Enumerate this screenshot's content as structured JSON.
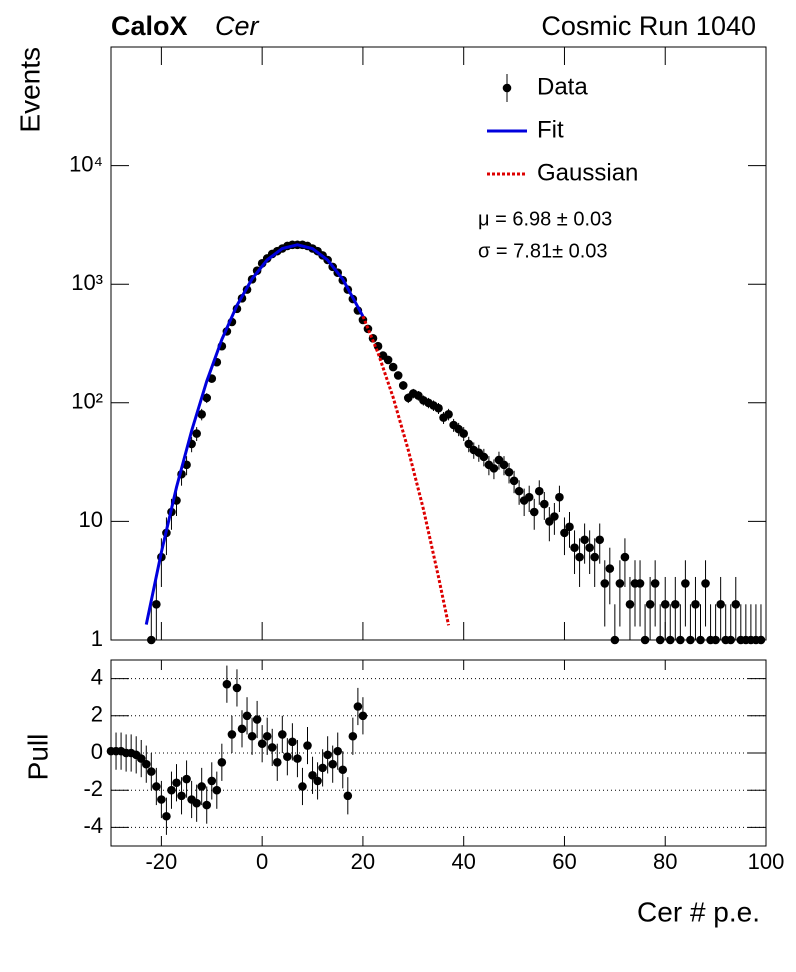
{
  "chart_data": [
    {
      "type": "scatter",
      "label_bold": "CaloX",
      "label_italic": "Cer",
      "run_label": "Cosmic Run 1040",
      "ylabel": "Events",
      "log_y": true,
      "xlim": [
        -30,
        100
      ],
      "xticks": [
        -20,
        0,
        20,
        40,
        60,
        80,
        100
      ],
      "ylim": [
        1,
        100000
      ],
      "yticks": [
        1,
        10,
        {
          "value": 100,
          "label": "10²"
        },
        {
          "value": 1000,
          "label": "10³"
        },
        {
          "value": 10000,
          "label": "10⁴"
        }
      ],
      "annotations": [
        "μ = 6.98 ± 0.03",
        "σ = 7.81± 0.03"
      ],
      "series": [
        {
          "name": "Data",
          "style": "points",
          "color": "#000000",
          "x": [
            -22,
            -21,
            -20,
            -19,
            -18,
            -17,
            -16,
            -15,
            -14,
            -13,
            -12,
            -11,
            -10,
            -9,
            -8,
            -7,
            -6,
            -5,
            -4,
            -3,
            -2,
            -1,
            0,
            1,
            2,
            3,
            4,
            5,
            6,
            7,
            8,
            9,
            10,
            11,
            12,
            13,
            14,
            15,
            16,
            17,
            18,
            19,
            20,
            21,
            22,
            23,
            24,
            25,
            26,
            27,
            28,
            29,
            30,
            31,
            32,
            33,
            34,
            35,
            36,
            37,
            38,
            39,
            40,
            41,
            42,
            43,
            44,
            45,
            46,
            47,
            48,
            49,
            50,
            51,
            52,
            53,
            54,
            55,
            56,
            57,
            58,
            59,
            60,
            61,
            62,
            63,
            64,
            65,
            66,
            67,
            68,
            69,
            70,
            71,
            72,
            73,
            74,
            75,
            76,
            77,
            78,
            79,
            80,
            81,
            82,
            83,
            84,
            85,
            86,
            87,
            88,
            89,
            90,
            91,
            92,
            93,
            94,
            95,
            96,
            97,
            98,
            99
          ],
          "values": [
            1,
            2,
            5,
            8,
            12,
            15,
            25,
            30,
            45,
            55,
            80,
            110,
            160,
            220,
            300,
            400,
            480,
            620,
            760,
            900,
            1100,
            1300,
            1500,
            1650,
            1800,
            1900,
            2000,
            2100,
            2150,
            2150,
            2150,
            2100,
            2000,
            1900,
            1750,
            1600,
            1400,
            1250,
            1080,
            900,
            750,
            600,
            500,
            420,
            350,
            300,
            250,
            230,
            200,
            170,
            140,
            110,
            120,
            115,
            105,
            100,
            95,
            90,
            75,
            80,
            65,
            60,
            55,
            45,
            40,
            38,
            35,
            30,
            28,
            33,
            30,
            26,
            22,
            18,
            15,
            16,
            12,
            18,
            14,
            10,
            11,
            16,
            8,
            9,
            6,
            5,
            7,
            6,
            5,
            7,
            3,
            4,
            1,
            3,
            5,
            2,
            3,
            3,
            1,
            2,
            3,
            1,
            2,
            1,
            2,
            1,
            3,
            1,
            2,
            1,
            3,
            1,
            1,
            2,
            1,
            1,
            2,
            1,
            1,
            1,
            1,
            1
          ],
          "errors": [
            1,
            1.4,
            2.2,
            2.8,
            3.5,
            3.9,
            5,
            5.5,
            6.7,
            7.4,
            8.9,
            10.5,
            12.6,
            14.8,
            17.3,
            20,
            21.9,
            24.9,
            27.6,
            30,
            33.2,
            36.1,
            38.7,
            40.6,
            42.4,
            43.6,
            44.7,
            45.8,
            46.4,
            46.4,
            46.4,
            45.8,
            44.7,
            43.6,
            41.8,
            40,
            37.4,
            35.4,
            32.9,
            30,
            27.4,
            24.5,
            22.4,
            20.5,
            18.7,
            17.3,
            15.8,
            15.2,
            14.1,
            13,
            11.8,
            10.5,
            11,
            10.7,
            10.2,
            10,
            9.7,
            9.5,
            8.7,
            8.9,
            8.1,
            7.7,
            7.4,
            6.7,
            6.3,
            6.2,
            5.9,
            5.5,
            5.3,
            5.7,
            5.5,
            5.1,
            4.7,
            4.2,
            3.9,
            4,
            3.5,
            4.2,
            3.7,
            3.2,
            3.3,
            4,
            2.8,
            3,
            2.4,
            2.2,
            2.6,
            2.4,
            2.2,
            2.6,
            1.7,
            2,
            1,
            1.7,
            2.2,
            1.4,
            1.7,
            1.7,
            1,
            1.4,
            1.7,
            1,
            1.4,
            1,
            1.4,
            1,
            1.7,
            1,
            1.4,
            1,
            1.7,
            1,
            1,
            1.4,
            1,
            1,
            1.4,
            1,
            1,
            1,
            1,
            1
          ]
        },
        {
          "name": "Fit",
          "style": "line",
          "color": "#0000dd",
          "x": [
            -23,
            -20,
            -17,
            -14,
            -11,
            -8,
            -5,
            -2,
            1,
            4,
            7,
            10,
            13,
            16,
            20
          ],
          "values": [
            1.35,
            5.5,
            19.4,
            58,
            152,
            342,
            663,
            1110,
            1604,
            1999,
            2150,
            1995,
            1598,
            1103,
            536
          ]
        },
        {
          "name": "Gaussian",
          "style": "dashed",
          "color": "#dd0000",
          "x": [
            20,
            23,
            26,
            29,
            32,
            35,
            37
          ],
          "values": [
            536,
            263,
            111,
            40,
            12.7,
            3.4,
            1.33
          ]
        }
      ]
    },
    {
      "type": "scatter",
      "ylabel": "Pull",
      "xlabel": "Cer # p.e.",
      "grid": true,
      "xlim": [
        -30,
        100
      ],
      "xticks": [
        -20,
        0,
        20,
        40,
        60,
        80,
        100
      ],
      "ylim": [
        -5,
        5
      ],
      "yticks": [
        -4,
        -2,
        0,
        2,
        4
      ],
      "series": [
        {
          "name": "Pull",
          "style": "points",
          "color": "#000000",
          "x": [
            -30,
            -29,
            -28,
            -27,
            -26,
            -25,
            -24,
            -23,
            -22,
            -21,
            -20,
            -19,
            -18,
            -17,
            -16,
            -15,
            -14,
            -13,
            -12,
            -11,
            -10,
            -9,
            -8,
            -7,
            -6,
            -5,
            -4,
            -3,
            -2,
            -1,
            0,
            1,
            2,
            3,
            4,
            5,
            6,
            7,
            8,
            9,
            10,
            11,
            12,
            13,
            14,
            15,
            16,
            17,
            18,
            19,
            20
          ],
          "values": [
            0.1,
            0.1,
            0.1,
            0,
            0,
            -0.1,
            -0.3,
            -0.6,
            -1.0,
            -1.8,
            -2.5,
            -3.4,
            -2.0,
            -1.6,
            -2.3,
            -1.4,
            -2.5,
            -2.7,
            -1.8,
            -2.8,
            -1.5,
            -2.0,
            -0.5,
            3.7,
            1.0,
            3.5,
            1.3,
            2.0,
            0.9,
            1.8,
            0.5,
            0.9,
            0.3,
            -0.5,
            1.0,
            -0.2,
            0.6,
            -0.3,
            -1.8,
            0.4,
            -1.2,
            -1.5,
            -0.8,
            -0.1,
            -0.6,
            0.1,
            -0.9,
            -2.3,
            0.9,
            2.5,
            2.0
          ],
          "errors": [
            1,
            1,
            1,
            1,
            1,
            1,
            1,
            1,
            1,
            1,
            1,
            1,
            1,
            1,
            1,
            1,
            1,
            1,
            1,
            1,
            1,
            1,
            1,
            1,
            1,
            1,
            1,
            1,
            1,
            1,
            1,
            1,
            1,
            1,
            1,
            1,
            1,
            1,
            1,
            1,
            1,
            1,
            1,
            1,
            1,
            1,
            1,
            1,
            1,
            1,
            1
          ]
        }
      ]
    }
  ]
}
